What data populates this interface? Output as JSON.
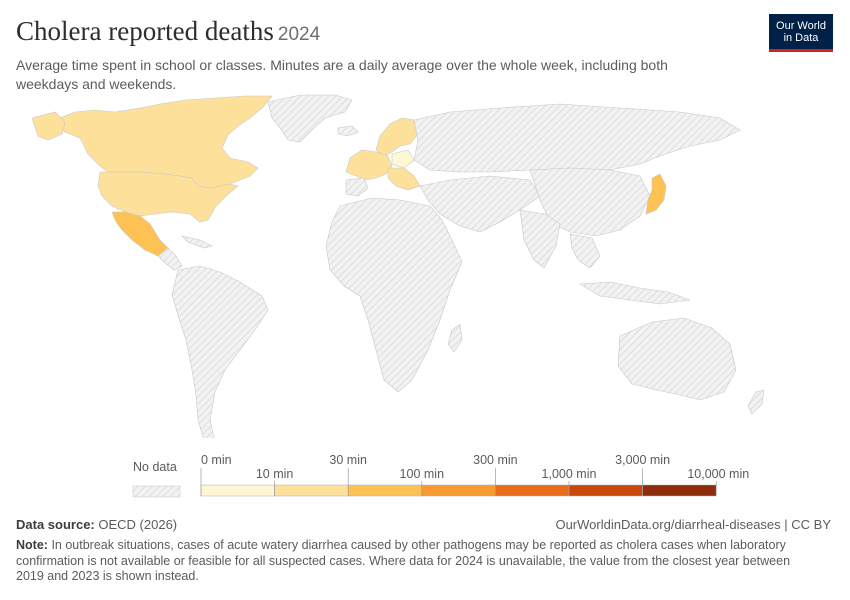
{
  "header": {
    "title": "Cholera reported deaths",
    "year": "2024",
    "subtitle": "Average time spent in school or classes. Minutes are a daily average over the whole week, including both weekdays and weekends."
  },
  "logo": {
    "line1": "Our World",
    "line2": "in Data"
  },
  "legend": {
    "no_data_label": "No data",
    "upper_labels": [
      "0 min",
      "30 min",
      "300 min",
      "3,000 min"
    ],
    "lower_labels": [
      "10 min",
      "100 min",
      "1,000 min",
      "10,000 min"
    ],
    "colors": [
      "#fef7d3",
      "#fde19b",
      "#fdc154",
      "#f99a31",
      "#ea6c18",
      "#c9490a",
      "#8f2c0b"
    ],
    "no_data_color": "#e8e8e8"
  },
  "map_data": {
    "colors": {
      "no_data": "#ebebeb",
      "bin_0_10": "#fef7d3",
      "bin_10_30": "#fde19b",
      "bin_30_100": "#fdc154",
      "bin_100_300": "#f99a31"
    },
    "countries": [
      {
        "name": "Canada",
        "bin": "10-30 min"
      },
      {
        "name": "United States",
        "bin": "10-30 min"
      },
      {
        "name": "Mexico",
        "bin": "100-300 min"
      },
      {
        "name": "Japan",
        "bin": "30-100 min"
      },
      {
        "name": "Poland",
        "bin": "0-10 min"
      }
    ]
  },
  "footer": {
    "source_label": "Data source:",
    "source_value": "OECD (2026)",
    "url": "OurWorldinData.org/diarrheal-diseases | CC BY",
    "note_label": "Note:",
    "note_text": "In outbreak situations, cases of acute watery diarrhea caused by other pathogens may be reported as cholera cases when laboratory confirmation is not available or feasible for all suspected cases. Where data for 2024 is unavailable, the value from the closest year between 2019 and 2023 is shown instead."
  }
}
